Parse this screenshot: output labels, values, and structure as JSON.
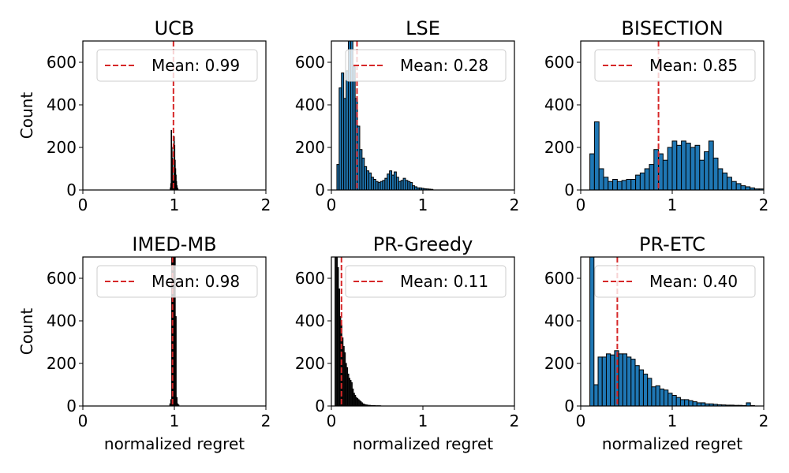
{
  "chart_data": [
    {
      "type": "histogram",
      "title": "UCB",
      "xlabel": "",
      "ylabel": "Count",
      "xlim": [
        0,
        2
      ],
      "ylim": [
        0,
        700
      ],
      "xticks": [
        "0",
        "1",
        "2"
      ],
      "yticks": [
        "0",
        "200",
        "400",
        "600"
      ],
      "mean": 0.99,
      "legend_label": "Mean: 0.99",
      "bin_edges_start": 0.95,
      "bin_width": 0.005,
      "counts": [
        0,
        10,
        30,
        280,
        200,
        150,
        60,
        40,
        30,
        250,
        210,
        140,
        100,
        70,
        40,
        20,
        10,
        5
      ],
      "bar_color": "#1f1f1f",
      "edge_color": "#000000"
    },
    {
      "type": "histogram",
      "title": "LSE",
      "xlabel": "",
      "ylabel": "",
      "xlim": [
        0,
        2
      ],
      "ylim": [
        0,
        700
      ],
      "xticks": [
        "0",
        "1",
        "2"
      ],
      "yticks": [
        "0",
        "200",
        "400",
        "600"
      ],
      "mean": 0.28,
      "legend_label": "Mean: 0.28",
      "bin_edges_start": 0.06,
      "bin_width": 0.025,
      "counts": [
        120,
        480,
        550,
        430,
        560,
        700,
        700,
        580,
        430,
        300,
        190,
        150,
        110,
        90,
        80,
        60,
        50,
        40,
        35,
        40,
        45,
        55,
        75,
        90,
        70,
        85,
        60,
        40,
        45,
        55,
        45,
        40,
        35,
        20,
        15,
        10,
        10,
        8,
        6,
        5,
        4,
        3
      ],
      "bar_color": "#1f77b4",
      "edge_color": "#000000"
    },
    {
      "type": "histogram",
      "title": "BISECTION",
      "xlabel": "",
      "ylabel": "",
      "xlim": [
        0,
        2
      ],
      "ylim": [
        0,
        700
      ],
      "xticks": [
        "0",
        "1",
        "2"
      ],
      "yticks": [
        "0",
        "200",
        "400",
        "600"
      ],
      "mean": 0.85,
      "legend_label": "Mean: 0.85",
      "bin_edges_start": 0.1,
      "bin_width": 0.05,
      "counts": [
        170,
        320,
        100,
        60,
        40,
        50,
        40,
        45,
        50,
        50,
        70,
        80,
        100,
        120,
        190,
        170,
        140,
        200,
        230,
        210,
        230,
        220,
        200,
        210,
        140,
        180,
        230,
        150,
        100,
        80,
        60,
        40,
        30,
        20,
        15,
        10,
        5,
        5,
        5,
        3
      ],
      "bar_color": "#1f77b4",
      "edge_color": "#000000"
    },
    {
      "type": "histogram",
      "title": "IMED-MB",
      "xlabel": "normalized regret",
      "ylabel": "Count",
      "xlim": [
        0,
        2
      ],
      "ylim": [
        0,
        700
      ],
      "xticks": [
        "0",
        "1",
        "2"
      ],
      "yticks": [
        "0",
        "200",
        "400",
        "600"
      ],
      "mean": 0.98,
      "legend_label": "Mean: 0.98",
      "bin_edges_start": 0.95,
      "bin_width": 0.01,
      "counts": [
        10,
        30,
        700,
        700,
        700,
        700,
        420,
        40,
        10,
        5
      ],
      "bar_color": "#1f1f1f",
      "edge_color": "#000000"
    },
    {
      "type": "histogram",
      "title": "PR-Greedy",
      "xlabel": "normalized regret",
      "ylabel": "",
      "xlim": [
        0,
        2
      ],
      "ylim": [
        0,
        700
      ],
      "xticks": [
        "0",
        "1",
        "2"
      ],
      "yticks": [
        "0",
        "200",
        "400",
        "600"
      ],
      "mean": 0.11,
      "legend_label": "Mean: 0.11",
      "bin_edges_start": 0.04,
      "bin_width": 0.0125,
      "counts": [
        700,
        700,
        650,
        550,
        420,
        380,
        320,
        280,
        250,
        200,
        180,
        150,
        130,
        120,
        110,
        80,
        60,
        50,
        40,
        35,
        30,
        25,
        20,
        15,
        10,
        8,
        6,
        5,
        4,
        3,
        3,
        2,
        2,
        2,
        2,
        1,
        1,
        1,
        1,
        1
      ],
      "bar_color": "#1f1f1f",
      "edge_color": "#000000"
    },
    {
      "type": "histogram",
      "title": "PR-ETC",
      "xlabel": "normalized regret",
      "ylabel": "",
      "xlim": [
        0,
        2
      ],
      "ylim": [
        0,
        700
      ],
      "xticks": [
        "0",
        "1",
        "2"
      ],
      "yticks": [
        "0",
        "200",
        "400",
        "600"
      ],
      "mean": 0.4,
      "legend_label": "Mean: 0.40",
      "bin_edges_start": 0.1,
      "bin_width": 0.045,
      "counts": [
        700,
        100,
        230,
        230,
        245,
        240,
        260,
        245,
        245,
        230,
        220,
        190,
        170,
        150,
        130,
        90,
        95,
        80,
        75,
        60,
        50,
        40,
        30,
        30,
        25,
        20,
        15,
        15,
        10,
        10,
        8,
        6,
        5,
        4,
        4,
        3,
        3,
        2,
        15,
        2
      ],
      "bar_color": "#1f77b4",
      "edge_color": "#000000"
    }
  ],
  "legend_line_color": "#d62728"
}
